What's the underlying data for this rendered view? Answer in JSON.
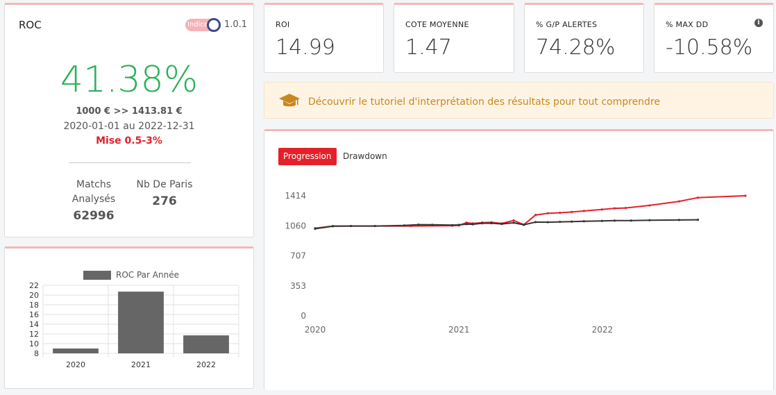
{
  "roc_card": {
    "title": "ROC",
    "toggle_label": "Indice",
    "version": "1.0.1",
    "roc_value": "41.38%",
    "amount_line": "1000 € >> 1413.81 €",
    "date_range": "2020-01-01 au 2022-12-31",
    "stake_line": "Mise 0.5-3%",
    "matches_label_line1": "Matchs",
    "matches_label_line2": "Analysés",
    "matches_value": "62996",
    "bets_label": "Nb De Paris",
    "bets_value": "276",
    "colors": {
      "positive": "#2ab05a",
      "stake": "#e0202a"
    }
  },
  "kpis": [
    {
      "label": "ROI",
      "value": "14.99"
    },
    {
      "label": "COTE MOYENNE",
      "value": "1.47"
    },
    {
      "label": "% G/P ALERTES",
      "value": "74.28%"
    },
    {
      "label": "% MAX DD",
      "value": "-10.58%",
      "icon": "info-icon"
    }
  ],
  "tutorial": {
    "icon": "graduation-cap-icon",
    "text": "Découvrir le tutoriel d'interprétation des résultats pour tout comprendre"
  },
  "progression_tabs": {
    "active": "Progression",
    "inactive": "Drawdown"
  },
  "chart_data": [
    {
      "type": "bar",
      "title": "",
      "legend": [
        "ROC Par Année"
      ],
      "legend_position": "top",
      "categories": [
        "2020",
        "2021",
        "2022"
      ],
      "series": [
        {
          "name": "ROC Par Année",
          "values": [
            9,
            20.7,
            11.7
          ]
        }
      ],
      "yticks": [
        "22",
        "20",
        "18",
        "16",
        "14",
        "12",
        "10",
        "8"
      ],
      "ylim": [
        8,
        22
      ],
      "grid": true,
      "color": "#666666"
    },
    {
      "type": "line",
      "title": "",
      "ylim": [
        0,
        1414
      ],
      "yticks": [
        "1414",
        "1060",
        "707",
        "353",
        "0"
      ],
      "xticks": [
        "2020",
        "2021",
        "2022"
      ],
      "xlim": [
        "2020-01-01",
        "2022-12-31"
      ],
      "grid": false,
      "series": [
        {
          "color": "#e5202a",
          "points": [
            [
              "2020-01-01",
              1032
            ],
            [
              "2020-02-15",
              1058
            ],
            [
              "2020-04-01",
              1058
            ],
            [
              "2020-09-01",
              1058
            ],
            [
              "2020-12-15",
              1062
            ],
            [
              "2021-01-01",
              1065
            ],
            [
              "2021-01-20",
              1097
            ],
            [
              "2021-02-05",
              1088
            ],
            [
              "2021-03-01",
              1098
            ],
            [
              "2021-03-25",
              1101
            ],
            [
              "2021-04-20",
              1088
            ],
            [
              "2021-05-20",
              1124
            ],
            [
              "2021-06-15",
              1074
            ],
            [
              "2021-07-15",
              1188
            ],
            [
              "2021-08-15",
              1208
            ],
            [
              "2021-09-15",
              1214
            ],
            [
              "2021-10-15",
              1223
            ],
            [
              "2021-11-15",
              1235
            ],
            [
              "2021-12-31",
              1253
            ],
            [
              "2022-02-01",
              1266
            ],
            [
              "2022-03-01",
              1270
            ],
            [
              "2022-05-01",
              1300
            ],
            [
              "2022-07-15",
              1348
            ],
            [
              "2022-09-01",
              1392
            ],
            [
              "2022-12-31",
              1414
            ]
          ]
        },
        {
          "color": "#333333",
          "points": [
            [
              "2020-01-01",
              1026
            ],
            [
              "2020-02-15",
              1055
            ],
            [
              "2020-04-01",
              1058
            ],
            [
              "2020-06-01",
              1058
            ],
            [
              "2020-08-15",
              1065
            ],
            [
              "2020-09-20",
              1074
            ],
            [
              "2020-10-25",
              1072
            ],
            [
              "2020-12-15",
              1068
            ],
            [
              "2021-01-01",
              1071
            ],
            [
              "2021-01-20",
              1080
            ],
            [
              "2021-02-05",
              1078
            ],
            [
              "2021-03-01",
              1090
            ],
            [
              "2021-03-25",
              1091
            ],
            [
              "2021-04-20",
              1082
            ],
            [
              "2021-05-20",
              1096
            ],
            [
              "2021-06-15",
              1072
            ],
            [
              "2021-07-15",
              1104
            ],
            [
              "2021-08-15",
              1103
            ],
            [
              "2021-09-15",
              1107
            ],
            [
              "2021-10-15",
              1110
            ],
            [
              "2021-11-15",
              1114
            ],
            [
              "2021-12-31",
              1118
            ],
            [
              "2022-02-01",
              1121
            ],
            [
              "2022-03-15",
              1122
            ],
            [
              "2022-05-01",
              1126
            ],
            [
              "2022-07-15",
              1129
            ],
            [
              "2022-09-01",
              1131
            ]
          ]
        }
      ]
    }
  ]
}
